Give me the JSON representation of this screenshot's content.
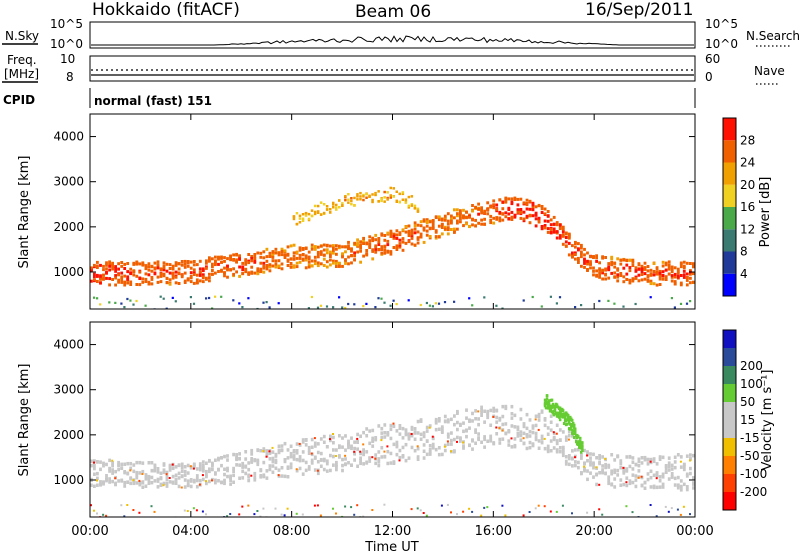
{
  "header": {
    "station": "Hokkaido (fitACF)",
    "beam": "Beam 06",
    "date": "16/Sep/2011"
  },
  "top_panels": {
    "nsky_label": "N.Sky",
    "nsky_ticks": [
      "10^5",
      "10^0"
    ],
    "nsearch_label": "N.Search",
    "nsearch_ticks": [
      "10^5",
      "10^0"
    ],
    "freq_label_1": "Freq.",
    "freq_label_2": "[MHz]",
    "freq_ticks": [
      "10",
      "8"
    ],
    "nave_label": "Nave",
    "nave_ticks": [
      "60",
      "0"
    ],
    "cpid_label": "CPID",
    "cpid_value": "normal (fast) 151"
  },
  "colors": {
    "power_scale": [
      "#0000ff",
      "#203a9a",
      "#3a7a70",
      "#4aaa4a",
      "#f0d020",
      "#f0a000",
      "#f06000",
      "#ff1000"
    ],
    "velocity_scale": [
      "#ff0000",
      "#ff4000",
      "#ff8000",
      "#f0c000",
      "#c8c8c8",
      "#c8c8c8",
      "#66cc33",
      "#3a8a60",
      "#2a4a9a",
      "#1010c0"
    ],
    "ground_scatter": "#c8c8c8"
  },
  "chart_data": [
    {
      "type": "heatmap",
      "name": "power",
      "xlabel": "",
      "ylabel": "Slant Range [km]",
      "x_ticks": [
        "00:00",
        "04:00",
        "08:00",
        "12:00",
        "16:00",
        "20:00",
        "00:00"
      ],
      "y_ticks": [
        "1000",
        "2000",
        "3000",
        "4000"
      ],
      "xlim_hours": [
        0,
        24
      ],
      "ylim_km": [
        180,
        4500
      ],
      "colorbar_label": "Power [dB]",
      "colorbar_ticks": [
        "4",
        "8",
        "12",
        "16",
        "20",
        "24",
        "28"
      ],
      "colorbar_range_db": [
        0,
        32
      ],
      "main_echo_band": [
        {
          "hour": 0,
          "range_km": 1000,
          "power_db": 30
        },
        {
          "hour": 2,
          "range_km": 1000,
          "power_db": 28
        },
        {
          "hour": 4,
          "range_km": 1030,
          "power_db": 28
        },
        {
          "hour": 6,
          "range_km": 1200,
          "power_db": 28
        },
        {
          "hour": 8,
          "range_km": 1380,
          "power_db": 26
        },
        {
          "hour": 10,
          "range_km": 1400,
          "power_db": 26
        },
        {
          "hour": 12,
          "range_km": 1700,
          "power_db": 28
        },
        {
          "hour": 14,
          "range_km": 2100,
          "power_db": 26
        },
        {
          "hour": 16,
          "range_km": 2380,
          "power_db": 28
        },
        {
          "hour": 17,
          "range_km": 2450,
          "power_db": 30
        },
        {
          "hour": 18,
          "range_km": 2200,
          "power_db": 30
        },
        {
          "hour": 19,
          "range_km": 1600,
          "power_db": 28
        },
        {
          "hour": 20,
          "range_km": 1150,
          "power_db": 28
        },
        {
          "hour": 22,
          "range_km": 1000,
          "power_db": 28
        },
        {
          "hour": 24,
          "range_km": 1000,
          "power_db": 28
        }
      ],
      "upper_echo_band": [
        {
          "hour": 8,
          "range_km": 2200,
          "power_db": 20
        },
        {
          "hour": 10,
          "range_km": 2600,
          "power_db": 22
        },
        {
          "hour": 12,
          "range_km": 2750,
          "power_db": 22
        },
        {
          "hour": 13,
          "range_km": 2500,
          "power_db": 20
        }
      ]
    },
    {
      "type": "heatmap",
      "name": "velocity",
      "xlabel": "Time UT",
      "ylabel": "Slant Range [km]",
      "x_ticks": [
        "00:00",
        "04:00",
        "08:00",
        "12:00",
        "16:00",
        "20:00",
        "00:00"
      ],
      "y_ticks": [
        "1000",
        "2000",
        "3000",
        "4000"
      ],
      "xlim_hours": [
        0,
        24
      ],
      "ylim_km": [
        180,
        4500
      ],
      "colorbar_label": "Velocity [m s⁻¹]",
      "colorbar_ticks": [
        "-200",
        "-100",
        "-50",
        "-15",
        "15",
        "50",
        "100",
        "200"
      ],
      "ground_scatter_band": [
        {
          "hour": 0,
          "low_km": 900,
          "high_km": 1500
        },
        {
          "hour": 4,
          "low_km": 850,
          "high_km": 1400
        },
        {
          "hour": 8,
          "low_km": 1100,
          "high_km": 1900
        },
        {
          "hour": 12,
          "low_km": 1400,
          "high_km": 2300
        },
        {
          "hour": 16,
          "low_km": 1800,
          "high_km": 2700
        },
        {
          "hour": 18,
          "low_km": 1700,
          "high_km": 2600
        },
        {
          "hour": 20,
          "low_km": 900,
          "high_km": 1600
        },
        {
          "hour": 24,
          "low_km": 800,
          "high_km": 1600
        }
      ],
      "positive_velocity_band": [
        {
          "hour": 18.0,
          "range_km": 2800,
          "velocity_ms": 40
        },
        {
          "hour": 19.0,
          "range_km": 2300,
          "velocity_ms": 40
        },
        {
          "hour": 19.5,
          "range_km": 1700,
          "velocity_ms": 35
        }
      ]
    }
  ]
}
